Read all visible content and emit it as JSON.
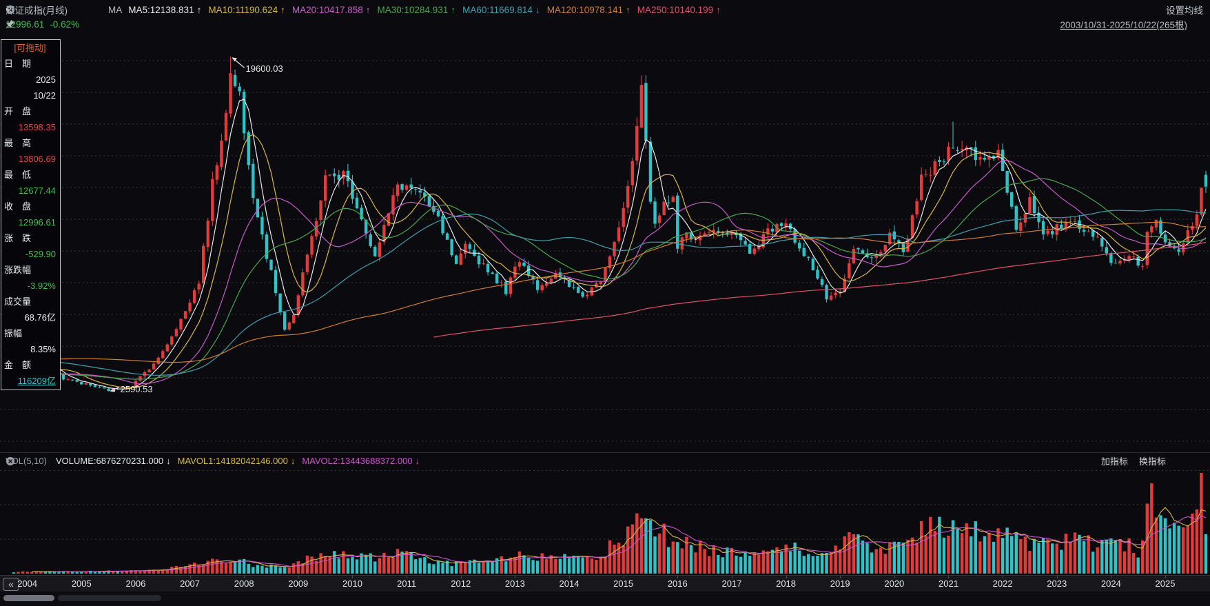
{
  "header": {
    "title": "深证成指(月线)",
    "ma_label": "MA",
    "ma_items": [
      {
        "text": "MA5:12138.831",
        "arrow": "↑",
        "color": "#e9e9e9"
      },
      {
        "text": "MA10:11190.624",
        "arrow": "↑",
        "color": "#d9b845"
      },
      {
        "text": "MA20:10417.858",
        "arrow": "↑",
        "color": "#c95bc9"
      },
      {
        "text": "MA30:10284.931",
        "arrow": "↑",
        "color": "#47a84c"
      },
      {
        "text": "MA60:11669.814",
        "arrow": "↓",
        "color": "#3f9fae"
      },
      {
        "text": "MA120:10978.141",
        "arrow": "↑",
        "color": "#d07e2f"
      },
      {
        "text": "MA250:10140.199",
        "arrow": "↑",
        "color": "#e1506e"
      }
    ],
    "price": "12996.61",
    "change_pct": "-0.62%",
    "settings_label": "设置均线",
    "date_range": "2003/10/31-2025/10/22(265根)"
  },
  "info_panel": {
    "drag_label": "[可拖动]",
    "rows": [
      {
        "label": "日　期",
        "values": [
          "2025",
          "10/22"
        ],
        "color": "white"
      },
      {
        "label": "开　盘",
        "values": [
          "13598.35"
        ],
        "color": "red"
      },
      {
        "label": "最　高",
        "values": [
          "13806.69"
        ],
        "color": "red"
      },
      {
        "label": "最　低",
        "values": [
          "12677.44"
        ],
        "color": "green"
      },
      {
        "label": "收　盘",
        "values": [
          "12996.61"
        ],
        "color": "green"
      },
      {
        "label": "涨　跌",
        "values": [
          "-529.90"
        ],
        "color": "green"
      },
      {
        "label": "涨跌幅",
        "values": [
          "-3.92%"
        ],
        "color": "green"
      },
      {
        "label": "成交量",
        "values": [
          "68.76亿"
        ],
        "color": "white"
      },
      {
        "label": "振幅",
        "values": [
          "8.35%"
        ],
        "color": "white"
      },
      {
        "label": "金　额",
        "values": [
          "116209亿"
        ],
        "color": "cyan",
        "underline": true
      }
    ]
  },
  "vol_header": {
    "label": "VOL(5,10)",
    "items": [
      {
        "text": "VOLUME:6876270231.000",
        "arrow": "↓",
        "color": "#e3e7eb"
      },
      {
        "text": "MAVOL1:14182042146.000",
        "arrow": "↓",
        "color": "#d9b845"
      },
      {
        "text": "MAVOL2:13443688372.000",
        "arrow": "↓",
        "color": "#cd55cd"
      }
    ],
    "add_indicator": "加指标",
    "switch_indicator": "换指标"
  },
  "x_axis": {
    "years": [
      "2004",
      "2005",
      "2006",
      "2007",
      "2008",
      "2009",
      "2010",
      "2011",
      "2012",
      "2013",
      "2014",
      "2015",
      "2016",
      "2017",
      "2018",
      "2019",
      "2020",
      "2021",
      "2022",
      "2023",
      "2024",
      "2025"
    ]
  },
  "chart_data": {
    "type": "candlestick",
    "title": "深证成指(月线)",
    "periodicity": "monthly",
    "start_month": "2003/10",
    "bar_count": 265,
    "range_label": "2003/10/31-2025/10/22",
    "grid": "dashed-horizontal",
    "ylim_est": [
      -500,
      20900
    ],
    "up_color": "#e13b3b",
    "down_color": "#2fc2c6",
    "high_annotation": {
      "label": "19600.03",
      "value": 19600.03,
      "month_index": 48
    },
    "low_annotation": {
      "label": "2590.53",
      "value": 2590.53,
      "month_index": 21
    },
    "last_bar": {
      "date": "2025/10/22",
      "open": 13598.35,
      "high": 13806.69,
      "low": 12677.44,
      "close": 12996.61,
      "change": -529.9,
      "change_pct": "-3.92%",
      "volume": "68.76亿",
      "amplitude": "8.35%",
      "amount": "116209亿"
    },
    "close_anchors": [
      [
        0,
        3250
      ],
      [
        2,
        3480
      ],
      [
        6,
        4100
      ],
      [
        11,
        3250
      ],
      [
        14,
        3070
      ],
      [
        21,
        2650
      ],
      [
        26,
        2870
      ],
      [
        32,
        4250
      ],
      [
        38,
        6647
      ],
      [
        41,
        8200
      ],
      [
        44,
        13100
      ],
      [
        46,
        15500
      ],
      [
        48,
        18600
      ],
      [
        50,
        17700
      ],
      [
        53,
        12700
      ],
      [
        56,
        9500
      ],
      [
        60,
        5800
      ],
      [
        62,
        6485
      ],
      [
        69,
        13400
      ],
      [
        73,
        13650
      ],
      [
        76,
        12100
      ],
      [
        80,
        9400
      ],
      [
        85,
        13100
      ],
      [
        89,
        12850
      ],
      [
        94,
        11300
      ],
      [
        98,
        8918
      ],
      [
        100,
        9900
      ],
      [
        105,
        8800
      ],
      [
        109,
        7700
      ],
      [
        112,
        9350
      ],
      [
        116,
        7900
      ],
      [
        120,
        8500
      ],
      [
        126,
        7400
      ],
      [
        130,
        8300
      ],
      [
        134,
        11014
      ],
      [
        137,
        14000
      ],
      [
        139,
        18100
      ],
      [
        141,
        12000
      ],
      [
        142,
        10900
      ],
      [
        144,
        12100
      ],
      [
        146,
        12664
      ],
      [
        147,
        9850
      ],
      [
        149,
        10600
      ],
      [
        152,
        10400
      ],
      [
        157,
        10850
      ],
      [
        161,
        10300
      ],
      [
        163,
        9700
      ],
      [
        169,
        11150
      ],
      [
        171,
        11000
      ],
      [
        176,
        9300
      ],
      [
        180,
        7350
      ],
      [
        183,
        7500
      ],
      [
        186,
        9800
      ],
      [
        190,
        9250
      ],
      [
        194,
        10430
      ],
      [
        197,
        9600
      ],
      [
        201,
        13310
      ],
      [
        206,
        14470
      ],
      [
        208,
        15244
      ],
      [
        211,
        14870
      ],
      [
        215,
        14300
      ],
      [
        218,
        14857
      ],
      [
        222,
        10900
      ],
      [
        225,
        12270
      ],
      [
        228,
        10397
      ],
      [
        234,
        11339
      ],
      [
        239,
        10600
      ],
      [
        242,
        9525
      ],
      [
        244,
        9069
      ],
      [
        247,
        9630
      ],
      [
        250,
        8920
      ],
      [
        251,
        10529
      ],
      [
        253,
        11270
      ],
      [
        255,
        10292
      ],
      [
        258,
        9900
      ],
      [
        262,
        11600
      ],
      [
        263,
        13200
      ],
      [
        264,
        12996.61
      ]
    ],
    "prehistory_anchors": [
      [
        -156,
        1000
      ],
      [
        -140,
        2600
      ],
      [
        -126,
        1350
      ],
      [
        -110,
        2300
      ],
      [
        -100,
        3500
      ],
      [
        -86,
        6000
      ],
      [
        -76,
        4200
      ],
      [
        -60,
        4500
      ],
      [
        -44,
        5100
      ],
      [
        -30,
        4700
      ],
      [
        -18,
        3500
      ],
      [
        -8,
        3250
      ],
      [
        -1,
        3300
      ]
    ],
    "volume_anchors": [
      [
        0,
        3
      ],
      [
        20,
        4
      ],
      [
        30,
        6
      ],
      [
        38,
        12
      ],
      [
        44,
        22
      ],
      [
        48,
        26
      ],
      [
        53,
        16
      ],
      [
        60,
        12
      ],
      [
        66,
        28
      ],
      [
        73,
        33
      ],
      [
        80,
        28
      ],
      [
        85,
        35
      ],
      [
        92,
        22
      ],
      [
        98,
        18
      ],
      [
        105,
        20
      ],
      [
        112,
        30
      ],
      [
        120,
        26
      ],
      [
        130,
        35
      ],
      [
        134,
        55
      ],
      [
        139,
        95
      ],
      [
        141,
        80
      ],
      [
        147,
        55
      ],
      [
        155,
        40
      ],
      [
        163,
        38
      ],
      [
        171,
        45
      ],
      [
        180,
        35
      ],
      [
        186,
        60
      ],
      [
        194,
        45
      ],
      [
        199,
        55
      ],
      [
        201,
        75
      ],
      [
        208,
        80
      ],
      [
        214,
        70
      ],
      [
        218,
        72
      ],
      [
        222,
        60
      ],
      [
        228,
        50
      ],
      [
        234,
        62
      ],
      [
        242,
        48
      ],
      [
        244,
        60
      ],
      [
        249,
        40
      ],
      [
        251,
        110
      ],
      [
        252,
        155
      ],
      [
        253,
        90
      ],
      [
        255,
        95
      ],
      [
        257,
        70
      ],
      [
        259,
        65
      ],
      [
        261,
        85
      ],
      [
        263,
        140
      ],
      [
        264,
        69
      ]
    ],
    "ma_lines": [
      {
        "period": 5,
        "color": "#e9e9e9",
        "last": 12138.831
      },
      {
        "period": 10,
        "color": "#d9b845",
        "last": 11190.624
      },
      {
        "period": 20,
        "color": "#c95bc9",
        "last": 10417.858
      },
      {
        "period": 30,
        "color": "#47a84c",
        "last": 10284.931
      },
      {
        "period": 60,
        "color": "#3f9fae",
        "last": 11669.814
      },
      {
        "period": 120,
        "color": "#d07e2f",
        "last": 10978.141
      },
      {
        "period": 250,
        "color": "#e1506e",
        "last": 10140.199
      }
    ],
    "mavol_lines": [
      {
        "period": 5,
        "color": "#d9b845",
        "last": 14182042146.0
      },
      {
        "period": 10,
        "color": "#cd55cd",
        "last": 13443688372.0
      }
    ]
  }
}
